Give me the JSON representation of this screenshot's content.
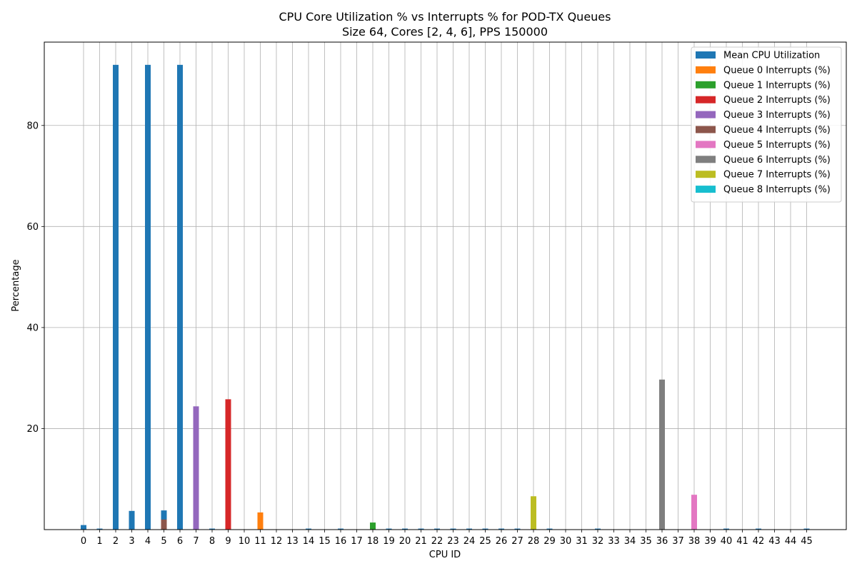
{
  "chart_data": {
    "type": "bar",
    "title": "CPU Core Utilization % vs Interrupts % for POD-TX Queues",
    "subtitle": "Size 64, Cores [2, 4, 6], PPS 150000",
    "xlabel": "CPU ID",
    "ylabel": "Percentage",
    "ylim": [
      0,
      96.5
    ],
    "yticks": [
      20,
      40,
      60,
      80
    ],
    "grid": true,
    "legend_position": "top-right",
    "categories": [
      "0",
      "1",
      "2",
      "3",
      "4",
      "5",
      "6",
      "7",
      "8",
      "9",
      "10",
      "11",
      "12",
      "13",
      "14",
      "15",
      "16",
      "17",
      "18",
      "19",
      "20",
      "21",
      "22",
      "23",
      "24",
      "25",
      "26",
      "27",
      "28",
      "29",
      "30",
      "31",
      "32",
      "33",
      "34",
      "35",
      "36",
      "37",
      "38",
      "39",
      "40",
      "41",
      "42",
      "43",
      "44",
      "45"
    ],
    "series": [
      {
        "name": "Mean CPU Utilization",
        "color": "#1f77b4",
        "values": [
          0.9,
          0.2,
          92,
          3.7,
          92,
          3.8,
          92,
          0,
          0.2,
          0,
          0,
          0,
          0,
          0,
          0.2,
          0,
          0.2,
          0,
          0,
          0.2,
          0.2,
          0.2,
          0.2,
          0.2,
          0.2,
          0.2,
          0.2,
          0.2,
          0,
          0.2,
          0,
          0,
          0.2,
          0,
          0,
          0,
          0,
          0,
          0,
          0,
          0.2,
          0,
          0.2,
          0,
          0,
          0.2
        ]
      },
      {
        "name": "Queue 0 Interrupts (%)",
        "color": "#ff7f0e",
        "values": [
          0,
          0,
          0,
          0,
          0,
          0,
          0,
          0,
          0,
          0,
          0,
          3.4,
          0,
          0,
          0,
          0,
          0,
          0,
          0,
          0,
          0,
          0,
          0,
          0,
          0,
          0,
          0,
          0,
          0,
          0,
          0,
          0,
          0,
          0,
          0,
          0,
          0,
          0,
          0,
          0,
          0,
          0,
          0,
          0,
          0,
          0
        ]
      },
      {
        "name": "Queue 1 Interrupts (%)",
        "color": "#2ca02c",
        "values": [
          0,
          0,
          0,
          0,
          0,
          0,
          0,
          0,
          0,
          0,
          0,
          0,
          0,
          0,
          0,
          0,
          0,
          0,
          1.4,
          0,
          0,
          0,
          0,
          0,
          0,
          0,
          0,
          0,
          0,
          0,
          0,
          0,
          0,
          0,
          0,
          0,
          0,
          0,
          0,
          0,
          0,
          0,
          0,
          0,
          0,
          0
        ]
      },
      {
        "name": "Queue 2 Interrupts (%)",
        "color": "#d62728",
        "values": [
          0,
          0,
          0,
          0,
          0,
          0,
          0,
          0,
          0,
          25.8,
          0,
          0,
          0,
          0,
          0,
          0,
          0,
          0,
          0,
          0,
          0,
          0,
          0,
          0,
          0,
          0,
          0,
          0,
          0,
          0,
          0,
          0,
          0,
          0,
          0,
          0,
          0,
          0,
          0,
          0,
          0,
          0,
          0,
          0,
          0,
          0
        ]
      },
      {
        "name": "Queue 3 Interrupts (%)",
        "color": "#9467bd",
        "values": [
          0,
          0,
          0,
          0,
          0,
          0,
          0,
          24.4,
          0,
          0,
          0,
          0,
          0,
          0,
          0,
          0,
          0,
          0,
          0,
          0,
          0,
          0,
          0,
          0,
          0,
          0,
          0,
          0,
          0,
          0,
          0,
          0,
          0,
          0,
          0,
          0,
          0,
          0,
          0,
          0,
          0,
          0,
          0,
          0,
          0,
          0
        ]
      },
      {
        "name": "Queue 4 Interrupts (%)",
        "color": "#8c564b",
        "values": [
          0,
          0,
          0,
          0,
          0,
          2.0,
          0,
          0,
          0,
          0,
          0,
          0,
          0,
          0,
          0,
          0,
          0,
          0,
          0,
          0,
          0,
          0,
          0,
          0,
          0,
          0,
          0,
          0,
          0,
          0,
          0,
          0,
          0,
          0,
          0,
          0,
          0,
          0,
          0,
          0,
          0,
          0,
          0,
          0,
          0,
          0
        ]
      },
      {
        "name": "Queue 5 Interrupts (%)",
        "color": "#e377c2",
        "values": [
          0,
          0,
          0,
          0,
          0,
          0,
          0,
          0,
          0,
          0,
          0,
          0,
          0,
          0,
          0,
          0,
          0,
          0,
          0,
          0,
          0,
          0,
          0,
          0,
          0,
          0,
          0,
          0,
          0,
          0,
          0,
          0,
          0,
          0,
          0,
          0,
          0,
          0,
          6.9,
          0,
          0,
          0,
          0,
          0,
          0,
          0
        ]
      },
      {
        "name": "Queue 6 Interrupts (%)",
        "color": "#7f7f7f",
        "values": [
          0,
          0,
          0,
          0,
          0,
          0,
          0,
          0,
          0,
          0,
          0,
          0,
          0,
          0,
          0,
          0,
          0,
          0,
          0,
          0,
          0,
          0,
          0,
          0,
          0,
          0,
          0,
          0,
          0,
          0,
          0,
          0,
          0,
          0,
          0,
          0,
          29.7,
          0,
          0,
          0,
          0,
          0,
          0,
          0,
          0,
          0
        ]
      },
      {
        "name": "Queue 7 Interrupts (%)",
        "color": "#bcbd22",
        "values": [
          0,
          0,
          0,
          0,
          0,
          0,
          0,
          0,
          0,
          0,
          0,
          0,
          0,
          0,
          0,
          0,
          0,
          0,
          0,
          0,
          0,
          0,
          0,
          0,
          0,
          0,
          0,
          0,
          6.6,
          0,
          0,
          0,
          0,
          0,
          0,
          0,
          0,
          0,
          0,
          0,
          0,
          0,
          0,
          0,
          0,
          0
        ]
      },
      {
        "name": "Queue 8 Interrupts (%)",
        "color": "#17becf",
        "values": [
          0,
          0,
          0,
          0,
          0,
          0,
          0,
          0,
          0,
          0,
          0,
          0,
          0,
          0,
          0,
          0,
          0,
          0,
          0,
          0,
          0,
          0,
          0,
          0,
          0,
          0,
          0,
          0,
          0,
          0,
          0,
          0,
          0,
          0,
          0,
          0,
          0,
          0,
          0,
          0,
          0,
          0,
          0,
          0,
          0,
          0
        ]
      }
    ]
  }
}
